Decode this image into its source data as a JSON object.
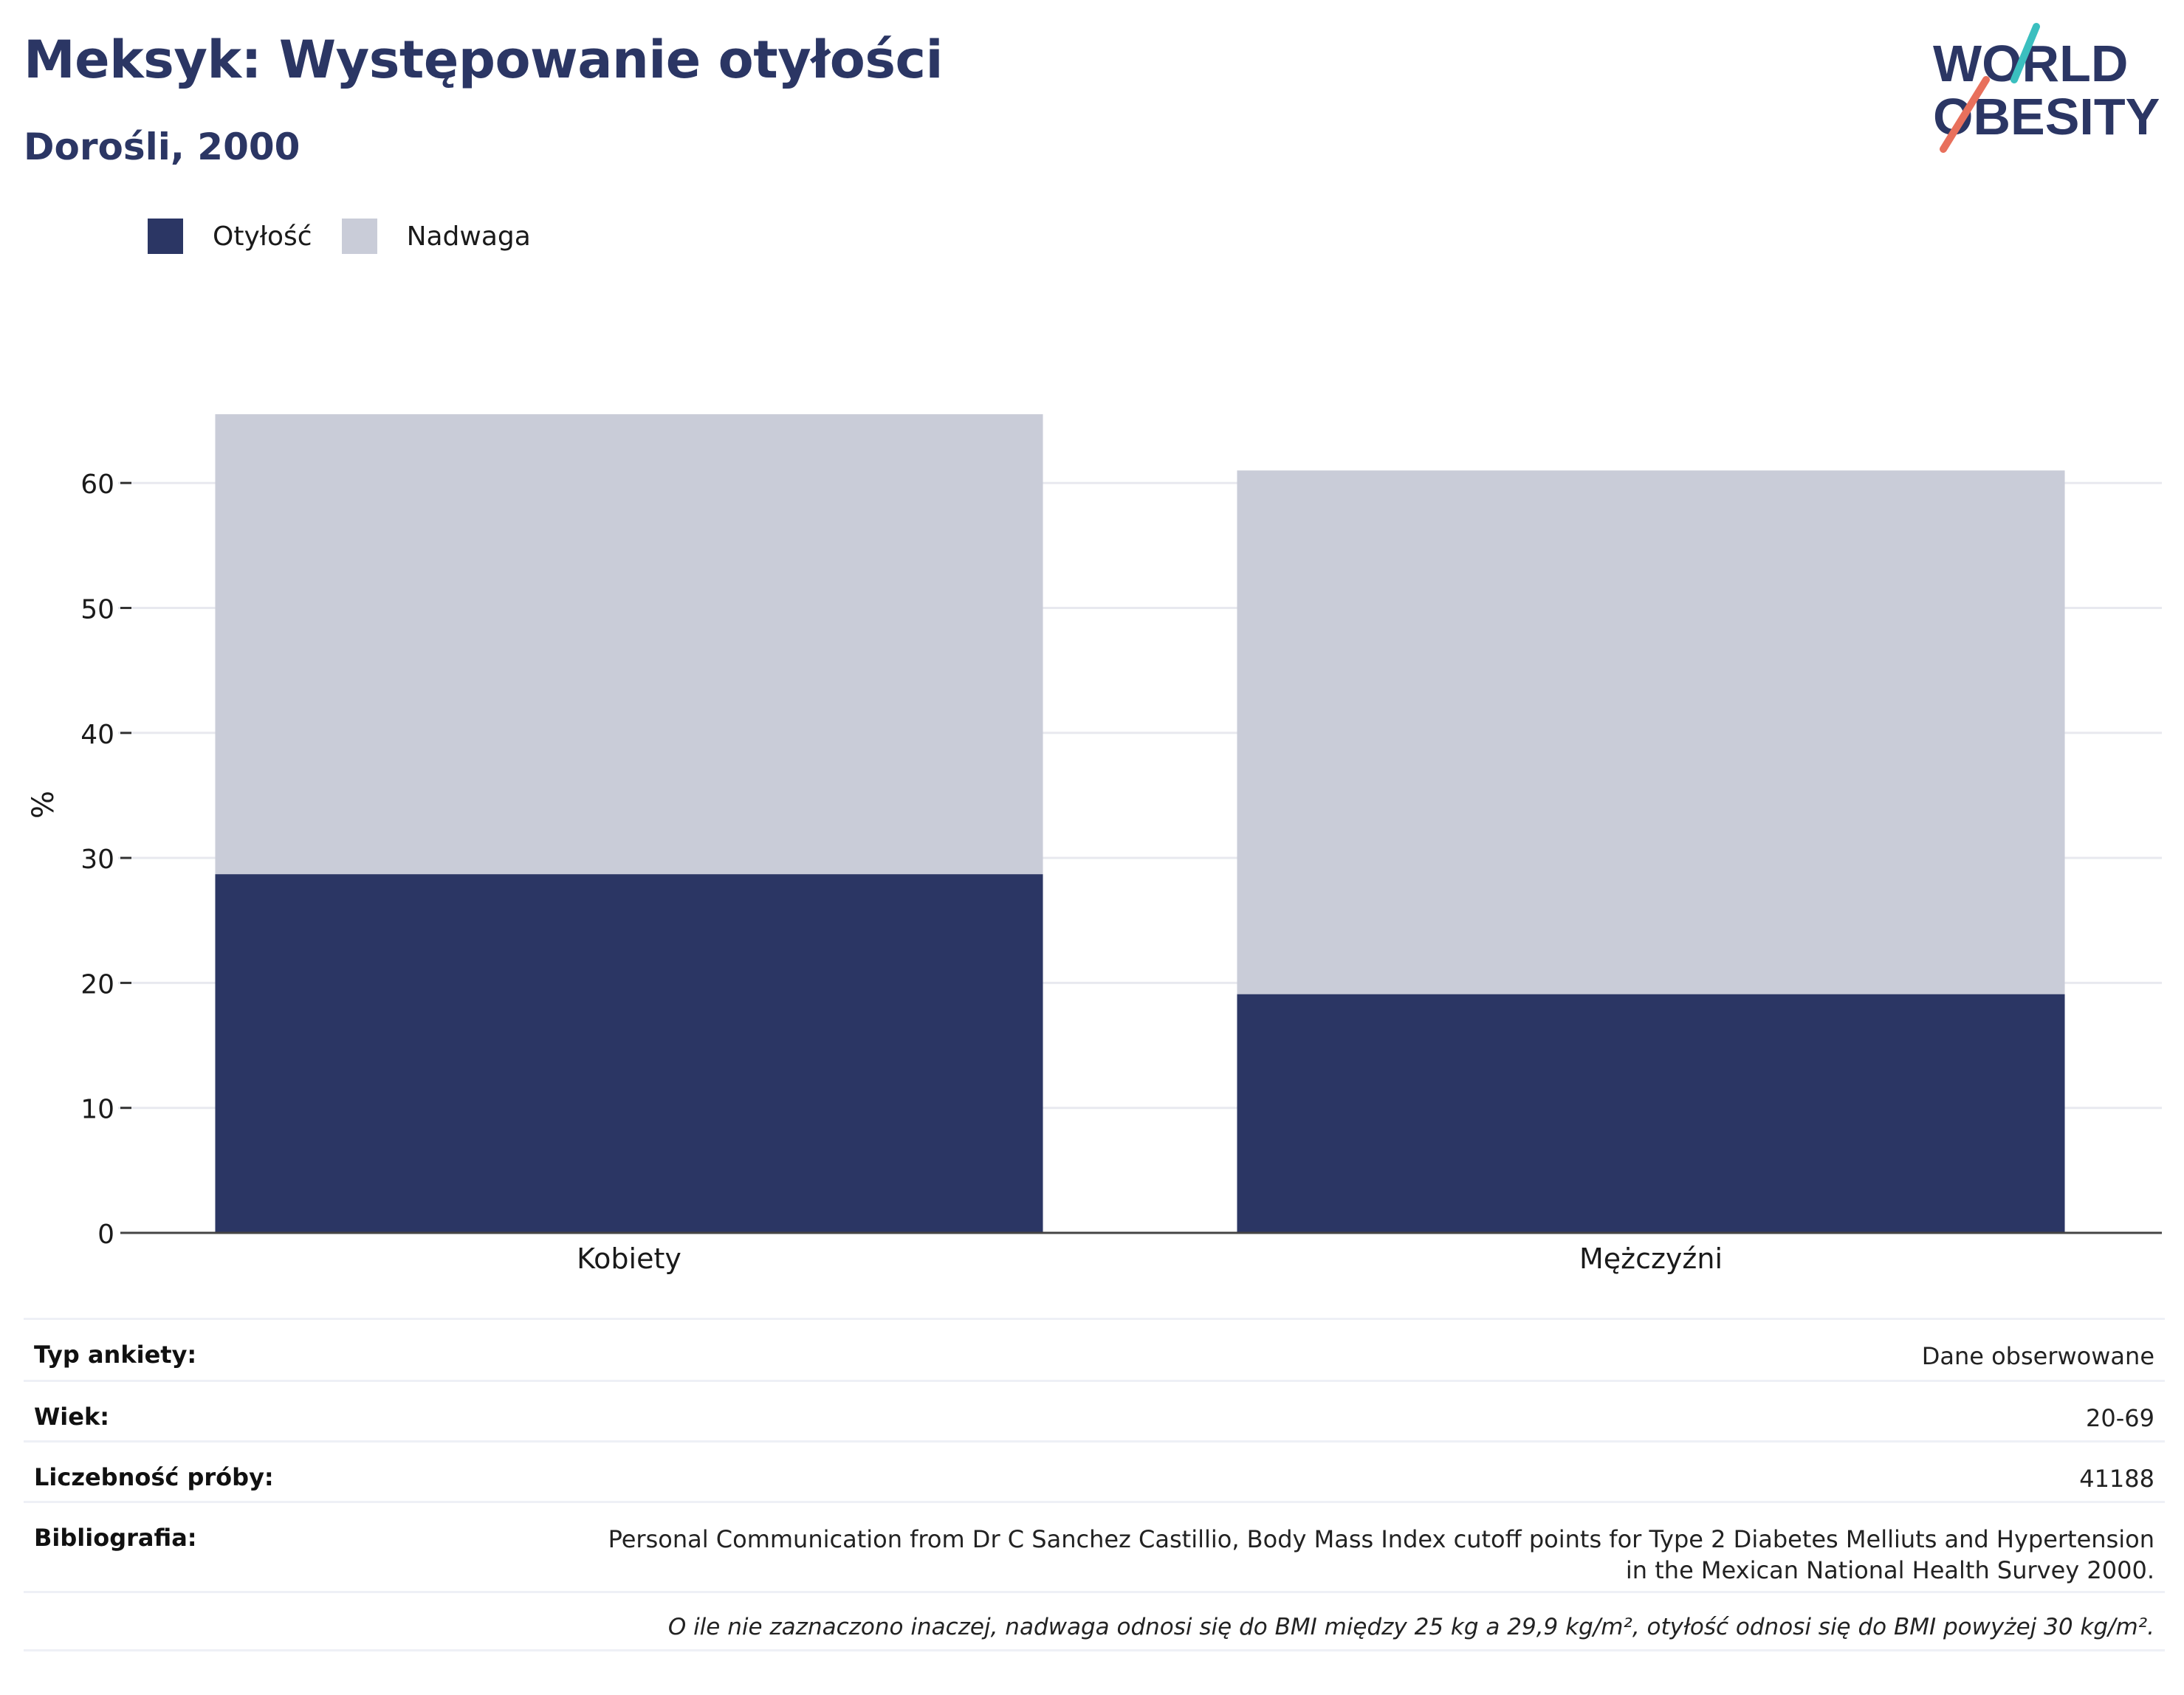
{
  "header": {
    "title": "Meksyk: Występowanie otyłości",
    "subtitle": "Dorośli, 2000"
  },
  "logo": {
    "line1": "WORLD",
    "line2": "OBESITY"
  },
  "colors": {
    "obesity": "#2b3664",
    "overweight": "#c9ccd8",
    "accent_teal": "#3bbfbf",
    "accent_coral": "#e8705c"
  },
  "chart_data": {
    "type": "bar",
    "stacked": true,
    "categories": [
      "Kobiety",
      "Mężczyźni"
    ],
    "series": [
      {
        "name": "Otyłość",
        "color": "#2b3664",
        "values": [
          28.7,
          19.1
        ]
      },
      {
        "name": "Nadwaga",
        "color": "#c9ccd8",
        "values": [
          36.8,
          41.9
        ]
      }
    ],
    "ylabel": "%",
    "ylim": [
      0,
      68
    ],
    "yticks": [
      0,
      10,
      20,
      30,
      40,
      50,
      60
    ],
    "grid": true,
    "legend": "top-left"
  },
  "info": {
    "survey_type": {
      "label": "Typ ankiety:",
      "value": "Dane obserwowane"
    },
    "age": {
      "label": "Wiek:",
      "value": "20-69"
    },
    "sample_size": {
      "label": "Liczebność próby:",
      "value": "41188"
    },
    "bibliography": {
      "label": "Bibliografia:",
      "value": "Personal Communication from Dr C Sanchez Castillio, Body Mass Index cutoff points for Type 2 Diabetes Melliuts and Hypertension in the Mexican National Health Survey 2000."
    },
    "note": "O ile nie zaznaczono inaczej, nadwaga odnosi się do BMI między 25 kg a 29,9 kg/m², otyłość odnosi się do BMI powyżej 30 kg/m²."
  }
}
